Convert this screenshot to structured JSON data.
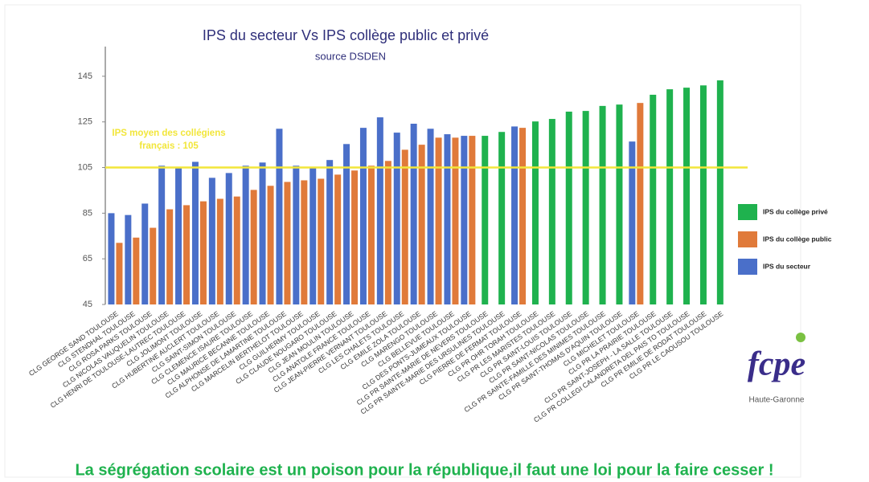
{
  "chart_data": {
    "type": "bar",
    "title": "IPS du secteur Vs IPS collège public et privé",
    "subtitle": "source DSDEN",
    "categories": [
      "CLG GEORGE SAND TOULOUSE",
      "CLG STENDHAL TOULOUSE",
      "CLG ROSA PARKS TOULOUSE",
      "CLG NICOLAS VAUQUELIN TOULOUSE",
      "CLG HENRI DE TOULOUSE-LAUTREC TOULOUSE",
      "CLG JOLIMONT TOULOUSE",
      "CLG HUBERTINE AUCLERT TOULOUSE",
      "CLG SAINT-SIMON TOULOUSE",
      "CLG CLEMENCE ISAURE TOULOUSE",
      "CLG MAURICE BECANNE TOULOUSE",
      "CLG ALPHONSE DE LAMARTINE TOULOUSE",
      "CLG MARCELIN BERTHELOT TOULOUSE",
      "CLG GUILHERMY TOULOUSE",
      "CLG CLAUDE NOUGARO TOULOUSE",
      "CLG JEAN MOULIN TOULOUSE",
      "CLG ANATOLE FRANCE TOULOUSE",
      "CLG JEAN-PIERRE VERNANT TOULOUSE",
      "CLG LES CHALETS TOULOUSE",
      "CLG EMILE ZOLA TOULOUSE",
      "CLG MARENGO TOULOUSE",
      "CLG BELLEVUE TOULOUSE",
      "CLG DES PONTS-JUMEAUX TOULOUSE",
      "CLG PR SAINTE-MARIE DE NEVERS TOULOUSE",
      "CLG PR SAINTE-MARIE DES URSULINES TOULOUSE",
      "CLG PIERRE DE FERMAT TOULOUSE",
      "CLG PR OHR TORAH TOULOUSE",
      "CLG PR LES MARISTES TOULOUSE",
      "CLG PR SAINT-LOUIS TOULOUSE",
      "CLG PR SAINT-NICOLAS TOULOUSE",
      "CLG PR SAINTE-FAMILLE DES MINIMES TOULOUSE",
      "CLG PR SAINT-THOMAS D'AQUIN TOULOUSE",
      "CLG MICHELET TOULOUSE",
      "CLG PR LA PRAIRIE TOULOUSE",
      "CLG PR SAINT-JOSEPH - LA SALLE TOULOUSE",
      "CLG PR COLLEGI CALANDRETA DEL PAIS TO TOULOUSE",
      "CLG PR EMILIE DE RODAT TOULOUSE",
      "CLG PR LE CAOUSOU TOULOUSE"
    ],
    "series": [
      {
        "name": "IPS du collège privé",
        "color": "#1fb24e",
        "values": [
          null,
          null,
          null,
          null,
          null,
          null,
          null,
          null,
          null,
          null,
          null,
          null,
          null,
          null,
          null,
          null,
          null,
          null,
          null,
          null,
          null,
          null,
          118.9,
          120.6,
          null,
          125.2,
          126.3,
          129.5,
          129.8,
          132,
          132.6,
          null,
          136.9,
          139.3,
          140,
          141,
          143.2
        ]
      },
      {
        "name": "IPS du collège public",
        "color": "#e07a3a",
        "values": [
          72,
          74.3,
          78.6,
          86.7,
          88.5,
          90.2,
          91.3,
          92.3,
          95.2,
          97,
          98.7,
          99.4,
          100.1,
          101.9,
          103.7,
          105.8,
          107.9,
          112.8,
          115,
          118.1,
          118.1,
          118.9,
          null,
          null,
          122.4,
          null,
          null,
          null,
          null,
          null,
          null,
          133.3,
          null,
          null,
          null,
          null,
          null
        ]
      },
      {
        "name": "IPS du secteur",
        "color": "#4a6fc9",
        "values": [
          85,
          84.2,
          89.2,
          105.8,
          104.7,
          107.5,
          100.5,
          102.6,
          105.8,
          107.2,
          122,
          105.8,
          105,
          108.3,
          115.3,
          122.4,
          127,
          120.3,
          124.2,
          122,
          119.6,
          118.9,
          null,
          null,
          123,
          null,
          null,
          null,
          null,
          null,
          null,
          116.4,
          null,
          null,
          null,
          null,
          null
        ]
      }
    ],
    "ylim": [
      45,
      158
    ],
    "yticks": [
      45,
      65,
      85,
      105,
      125,
      145
    ],
    "reference_line": {
      "value": 105,
      "color": "#f2e63a",
      "label_lines": [
        "IPS moyen des collégiens",
        "français : 105"
      ]
    },
    "legend": "right"
  },
  "logo": {
    "text": "fcpe",
    "subtitle": "Haute-Garonne"
  },
  "footer": "La ségrégation scolaire est un poison pour la république,il faut une loi pour la faire cesser !"
}
